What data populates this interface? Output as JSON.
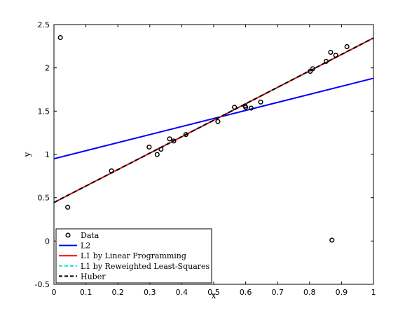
{
  "chart_data": {
    "type": "scatter",
    "title": "",
    "xlabel": "x",
    "ylabel": "y",
    "xlim": [
      0,
      1
    ],
    "ylim": [
      -0.5,
      2.5
    ],
    "xticks": [
      "0",
      "0.1",
      "0.2",
      "0.3",
      "0.4",
      "0.5",
      "0.6",
      "0.7",
      "0.8",
      "0.9",
      "1"
    ],
    "xtick_values": [
      0,
      0.1,
      0.2,
      0.3,
      0.4,
      0.5,
      0.6,
      0.7,
      0.8,
      0.9,
      1
    ],
    "yticks": [
      "-0.5",
      "0",
      "0.5",
      "1",
      "1.5",
      "2",
      "2.5"
    ],
    "ytick_values": [
      -0.5,
      0,
      0.5,
      1,
      1.5,
      2,
      2.5
    ],
    "grid": false,
    "legend_position": "bottom-left",
    "series": [
      {
        "name": "Data",
        "kind": "points",
        "color": "#000000",
        "x": [
          0.02,
          0.043,
          0.18,
          0.298,
          0.323,
          0.335,
          0.362,
          0.375,
          0.413,
          0.513,
          0.565,
          0.598,
          0.6,
          0.617,
          0.647,
          0.802,
          0.81,
          0.852,
          0.866,
          0.87,
          0.882,
          0.917
        ],
        "y": [
          2.35,
          0.39,
          0.81,
          1.085,
          1.0,
          1.06,
          1.18,
          1.155,
          1.23,
          1.38,
          1.545,
          1.56,
          1.545,
          1.535,
          1.605,
          1.96,
          1.99,
          2.075,
          2.18,
          0.01,
          2.145,
          2.245
        ]
      },
      {
        "name": "L2",
        "kind": "line",
        "color": "#0000ff",
        "dash": "solid",
        "x": [
          0,
          1
        ],
        "y": [
          0.95,
          1.88
        ]
      },
      {
        "name": "L1 by Linear Programming",
        "kind": "line",
        "color": "#ff0000",
        "dash": "solid",
        "x": [
          0,
          1
        ],
        "y": [
          0.445,
          2.345
        ]
      },
      {
        "name": "L1 by Reweighted Least-Squares",
        "kind": "line",
        "color": "#00e5e5",
        "dash": "dashed",
        "x": [
          0,
          1
        ],
        "y": [
          0.445,
          2.345
        ]
      },
      {
        "name": "Huber",
        "kind": "line",
        "color": "#000000",
        "dash": "dashed",
        "x": [
          0,
          1
        ],
        "y": [
          0.445,
          2.345
        ]
      }
    ]
  }
}
